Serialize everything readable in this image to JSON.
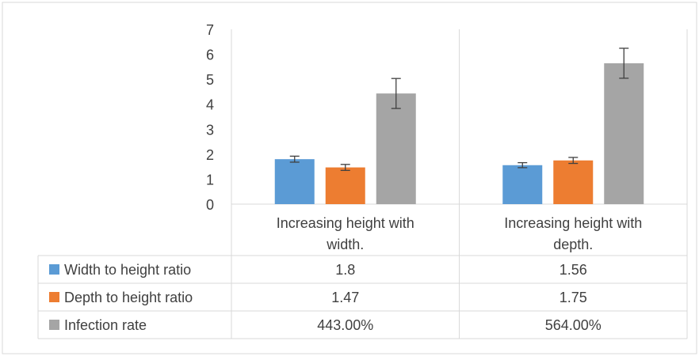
{
  "chart_data": {
    "type": "bar",
    "categories": [
      "Increasing height with width.",
      "Increasing height with depth."
    ],
    "category_lines": [
      [
        "Increasing height with",
        "width."
      ],
      [
        "Increasing height with",
        "depth."
      ]
    ],
    "ylim": [
      0,
      7
    ],
    "yticks": [
      0,
      1,
      2,
      3,
      4,
      5,
      6,
      7
    ],
    "series": [
      {
        "name": "Width to height ratio",
        "values": [
          1.8,
          1.56
        ],
        "errors": [
          0.12,
          0.1
        ],
        "color": "#5b9bd5",
        "table_values": [
          "1.8",
          "1.56"
        ]
      },
      {
        "name": "Depth to height ratio",
        "values": [
          1.47,
          1.75
        ],
        "errors": [
          0.12,
          0.12
        ],
        "color": "#ed7d31",
        "table_values": [
          "1.47",
          "1.75"
        ]
      },
      {
        "name": "Infection rate",
        "values": [
          4.43,
          5.64
        ],
        "errors": [
          0.6,
          0.6
        ],
        "color": "#a5a5a5",
        "table_values": [
          "443.00%",
          "564.00%"
        ]
      }
    ],
    "data_table": true,
    "legend": "data-table",
    "grid": "vertical category separators"
  }
}
